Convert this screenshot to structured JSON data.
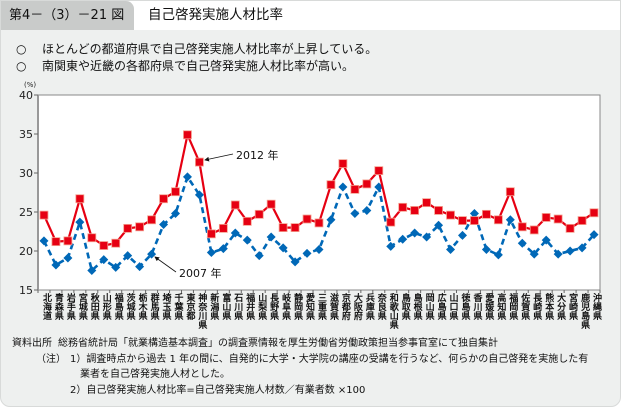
{
  "header": {
    "figure_number": "第4－（3）－21 図",
    "title": "自己啓発実施人材比率"
  },
  "bullets": [
    {
      "marker": "○",
      "text": "ほとんどの都道府県で自己啓発実施人材比率が上昇している。"
    },
    {
      "marker": "○",
      "text": "南関東や近畿の各都府県で自己啓発実施人材比率が高い。"
    }
  ],
  "chart_data": {
    "type": "line",
    "unit_label": "(%)",
    "ylim": [
      15,
      40
    ],
    "yticks": [
      "15",
      "20",
      "25",
      "30",
      "35",
      "40"
    ],
    "categories": [
      "北海道",
      "青森県",
      "岩手県",
      "宮城県",
      "秋田県",
      "山形県",
      "福島県",
      "茨城県",
      "栃木県",
      "群馬県",
      "埼玉県",
      "千葉県",
      "東京都",
      "神奈川県",
      "新潟県",
      "富山県",
      "石川県",
      "福井県",
      "山梨県",
      "長野県",
      "岐阜県",
      "静岡県",
      "愛知県",
      "三重県",
      "滋賀県",
      "京都府",
      "大阪府",
      "兵庫県",
      "奈良県",
      "和歌山県",
      "鳥取県",
      "島根県",
      "岡山県",
      "広島県",
      "山口県",
      "徳島県",
      "香川県",
      "愛媛県",
      "高知県",
      "福岡県",
      "佐賀県",
      "長崎県",
      "熊本県",
      "大分県",
      "宮崎県",
      "鹿児島県",
      "沖縄県"
    ],
    "series": [
      {
        "name": "2012 年",
        "color": "#e60012",
        "style": "solid",
        "marker": "square",
        "values": [
          24.6,
          21.2,
          21.3,
          26.7,
          21.7,
          20.7,
          21.0,
          22.9,
          23.1,
          24.0,
          26.7,
          27.6,
          34.9,
          31.4,
          22.2,
          22.9,
          25.9,
          23.8,
          24.7,
          26.0,
          23.0,
          23.0,
          24.1,
          23.6,
          28.5,
          31.2,
          27.9,
          28.6,
          30.3,
          23.7,
          25.6,
          25.2,
          26.2,
          25.2,
          24.6,
          23.9,
          23.9,
          24.7,
          24.0,
          27.6,
          23.1,
          22.7,
          24.3,
          24.1,
          22.9,
          23.9,
          24.9
        ]
      },
      {
        "name": "2007 年",
        "color": "#0068b7",
        "style": "dashed",
        "marker": "diamond",
        "values": [
          21.3,
          18.2,
          19.1,
          23.7,
          17.5,
          18.9,
          17.9,
          19.4,
          18.0,
          19.6,
          23.4,
          24.8,
          29.5,
          27.2,
          19.8,
          20.3,
          22.3,
          21.4,
          19.4,
          21.8,
          20.4,
          18.6,
          19.7,
          20.2,
          24.0,
          28.2,
          24.8,
          25.2,
          28.2,
          20.6,
          21.5,
          22.3,
          21.8,
          23.3,
          20.2,
          22.0,
          24.8,
          20.2,
          19.5,
          24.0,
          21.0,
          19.6,
          21.4,
          19.6,
          20.0,
          20.4,
          22.1
        ]
      }
    ]
  },
  "notes": {
    "source_label": "資料出所",
    "source_text": "総務省統計局「就業構造基本調査」の調査票情報を厚生労働省労働政策担当参事官室にて独自集計",
    "notes_label": "（注）",
    "note1_line1": "1）調査時点から過去 1 年の間に、自発的に大学・大学院の講座の受講を行うなど、何らかの自己啓発を実施した有",
    "note1_line2": "業者を自己啓発実施人材とした。",
    "note2": "2）自己啓発実施人材比率=自己啓発実施人材数／有業者数 ×100"
  }
}
